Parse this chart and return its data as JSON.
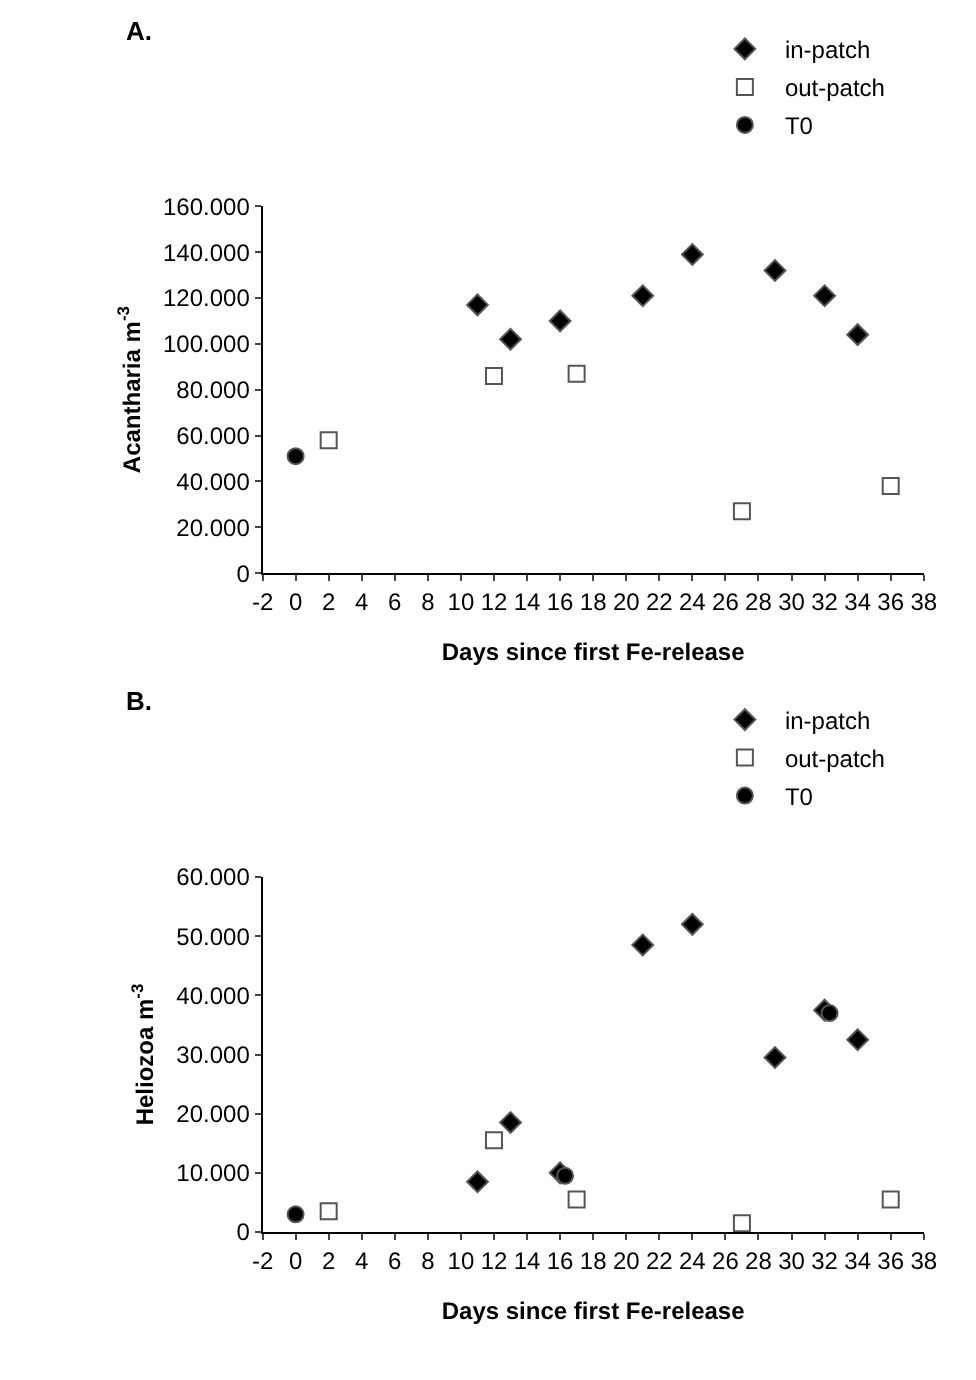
{
  "chart_data": [
    {
      "type": "scatter",
      "title": "A.",
      "xlabel": "Days since first Fe-release",
      "ylabel": "Acantharia m$^{-3}$",
      "xlim": [
        -2,
        38
      ],
      "xticks": [
        -2,
        0,
        2,
        4,
        6,
        8,
        10,
        12,
        14,
        16,
        18,
        20,
        22,
        24,
        26,
        28,
        30,
        32,
        34,
        36,
        38
      ],
      "ylim": [
        0,
        160000
      ],
      "yticks": [
        0,
        {
          "value": 20000,
          "label": "20.000"
        },
        {
          "value": 40000,
          "label": "40.000"
        },
        {
          "value": 60000,
          "label": "60.000"
        },
        {
          "value": 80000,
          "label": "80.000"
        },
        {
          "value": 100000,
          "label": "100.000"
        },
        {
          "value": 120000,
          "label": "120.000"
        },
        {
          "value": 140000,
          "label": "140.000"
        },
        {
          "value": 160000,
          "label": "160.000"
        }
      ],
      "legend": "top right",
      "series": [
        {
          "name": "in-patch",
          "color": "#000000",
          "marker": "diamond",
          "x": [
            11,
            13,
            16,
            21,
            24,
            29,
            32,
            34
          ],
          "values": [
            117000,
            102000,
            110000,
            121000,
            139000,
            132000,
            121000,
            104000
          ]
        },
        {
          "name": "out-patch",
          "color": "#ffffff",
          "marker": "square",
          "x": [
            2,
            12,
            17,
            27,
            36
          ],
          "values": [
            58000,
            86000,
            87000,
            27000,
            38000
          ]
        },
        {
          "name": "T0",
          "color": "#000000",
          "marker": "circle",
          "x": [
            0
          ],
          "values": [
            51000
          ]
        }
      ]
    },
    {
      "type": "scatter",
      "title": "B.",
      "xlabel": "Days since first Fe-release",
      "ylabel": "Heliozoa m$^{-3}$",
      "xlim": [
        -2,
        38
      ],
      "xticks": [
        -2,
        0,
        2,
        4,
        6,
        8,
        10,
        12,
        14,
        16,
        18,
        20,
        22,
        24,
        26,
        28,
        30,
        32,
        34,
        36,
        38
      ],
      "ylim": [
        0,
        60000
      ],
      "yticks": [
        0,
        {
          "value": 10000,
          "label": "10.000"
        },
        {
          "value": 20000,
          "label": "20.000"
        },
        {
          "value": 30000,
          "label": "30.000"
        },
        {
          "value": 40000,
          "label": "40.000"
        },
        {
          "value": 50000,
          "label": "50.000"
        },
        {
          "value": 60000,
          "label": "60.000"
        }
      ],
      "legend": "top right",
      "series": [
        {
          "name": "in-patch",
          "color": "#000000",
          "marker": "diamond",
          "x": [
            11,
            13,
            16,
            21,
            24,
            29,
            32,
            34
          ],
          "values": [
            8500,
            18500,
            10000,
            48500,
            52000,
            29500,
            37500,
            32500
          ]
        },
        {
          "name": "out-patch",
          "color": "#ffffff",
          "marker": "square",
          "x": [
            2,
            12,
            17,
            27,
            36
          ],
          "values": [
            3500,
            15500,
            5500,
            1500,
            5500
          ]
        },
        {
          "name": "T0",
          "color": "#000000",
          "marker": "circle",
          "x": [
            0,
            16.3,
            32.3
          ],
          "values": [
            3000,
            9500,
            37000
          ]
        }
      ]
    }
  ]
}
